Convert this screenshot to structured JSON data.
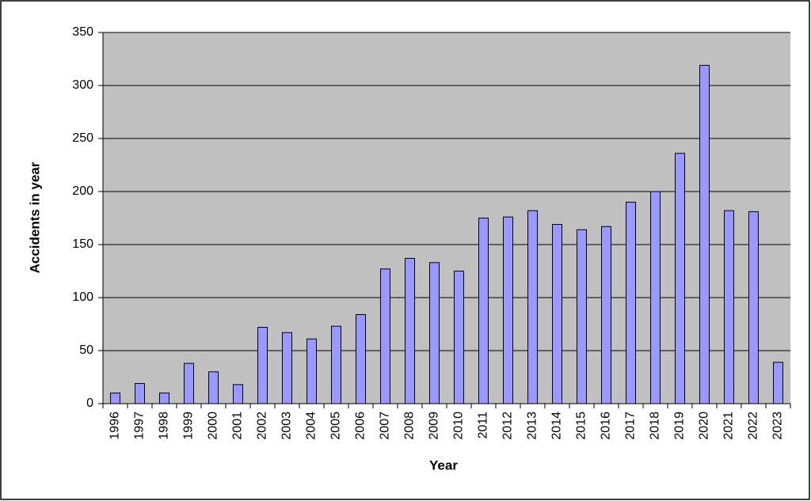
{
  "chart_data": {
    "type": "bar",
    "x_label": "Year",
    "y_label": "Accidents in year",
    "categories": [
      "1996",
      "1997",
      "1998",
      "1999",
      "2000",
      "2001",
      "2002",
      "2003",
      "2004",
      "2005",
      "2006",
      "2007",
      "2008",
      "2009",
      "2010",
      "2011",
      "2012",
      "2013",
      "2014",
      "2015",
      "2016",
      "2017",
      "2018",
      "2019",
      "2020",
      "2021",
      "2022",
      "2023"
    ],
    "values": [
      10,
      19,
      10,
      38,
      30,
      18,
      72,
      67,
      61,
      73,
      84,
      127,
      137,
      133,
      125,
      175,
      176,
      182,
      169,
      164,
      167,
      190,
      200,
      236,
      319,
      182,
      181,
      39
    ],
    "color": "#9999ff",
    "ylim": [
      0,
      350
    ],
    "yticks": [
      0,
      50,
      100,
      150,
      200,
      250,
      300,
      350
    ],
    "grid": true
  }
}
